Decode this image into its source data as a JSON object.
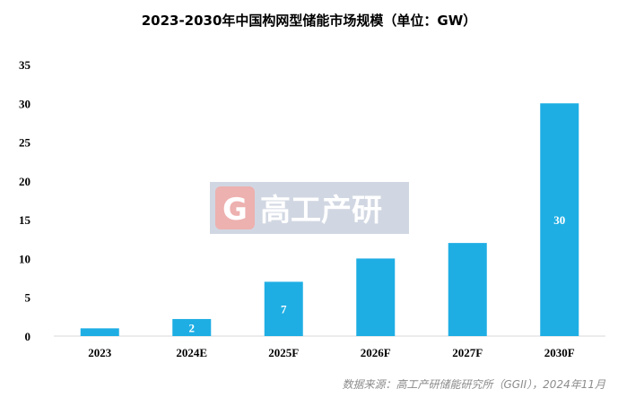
{
  "chart_data": {
    "type": "bar",
    "title": "2023-2030年中国构网型储能市场规模（单位：GW）",
    "categories": [
      "2023",
      "2024E",
      "2025F",
      "2026F",
      "2027F",
      "2030F"
    ],
    "values": [
      1,
      2.2,
      7,
      10,
      12,
      30
    ],
    "data_labels": [
      "",
      "2",
      "7",
      "",
      "",
      "30"
    ],
    "ylim": [
      0,
      35
    ],
    "yticks": [
      0,
      5,
      10,
      15,
      20,
      25,
      30,
      35
    ],
    "grid": false,
    "bar_color": "#1EAEE4"
  },
  "watermark": {
    "logo_text": "G",
    "text": "高工产研"
  },
  "source": "数据来源：高工产研储能研究所（GGII），2024年11月"
}
